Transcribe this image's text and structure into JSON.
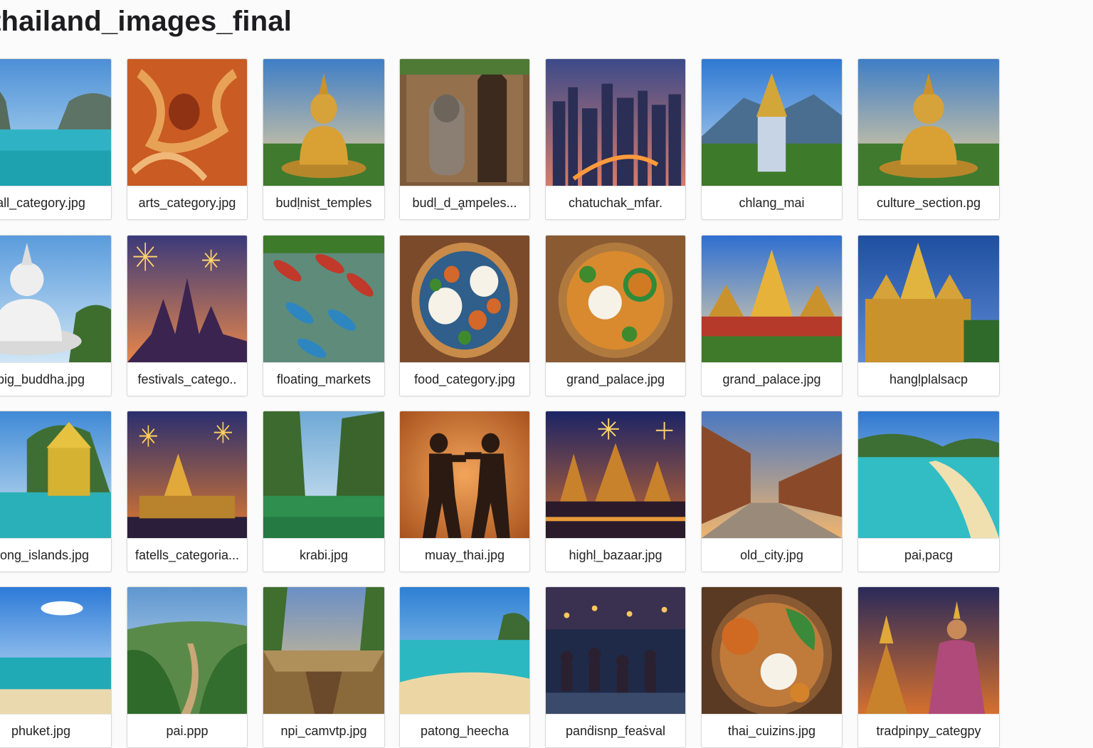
{
  "window": {
    "title": "thailand_images_final"
  },
  "files": [
    {
      "name": "all_category.jpg",
      "icon": "lagoon-cliffs-image-icon"
    },
    {
      "name": "arts_category.jpg",
      "icon": "mural-art-image-icon"
    },
    {
      "name": "budḷnist_temples",
      "icon": "golden-buddha-image-icon"
    },
    {
      "name": "budḷ_d_ḁmpeles...",
      "icon": "stone-ruins-image-icon"
    },
    {
      "name": "chatuchak_mfar.",
      "icon": "city-skyline-image-icon"
    },
    {
      "name": "chlang_mai",
      "icon": "mountain-temple-image-icon"
    },
    {
      "name": "culture_section.pg",
      "icon": "golden-buddha-image-icon"
    },
    {
      "name": "big_buddha.jpg",
      "icon": "white-buddha-image-icon"
    },
    {
      "name": "festivals_catego..",
      "icon": "temple-fireworks-image-icon"
    },
    {
      "name": "floating_markets",
      "icon": "floating-boats-image-icon"
    },
    {
      "name": "food_category.jpg",
      "icon": "food-bowl-image-icon"
    },
    {
      "name": "grand_palace.jpg",
      "icon": "curry-bowl-image-icon"
    },
    {
      "name": "grand_palace.jpg",
      "icon": "grand-palace-image-icon"
    },
    {
      "name": "hangḷplalsacp",
      "icon": "golden-palace-image-icon"
    },
    {
      "name": "hong_islands.jpg",
      "icon": "island-pavilion-image-icon"
    },
    {
      "name": "fatells_categoria...",
      "icon": "pagoda-fireworks-image-icon"
    },
    {
      "name": "krabi.jpg",
      "icon": "river-cliffs-image-icon"
    },
    {
      "name": "muay_thai.jpg",
      "icon": "boxers-silhouette-image-icon"
    },
    {
      "name": "highḷ_bazaar.jpg",
      "icon": "night-temple-image-icon"
    },
    {
      "name": "old_city.jpg",
      "icon": "old-wall-road-image-icon"
    },
    {
      "name": "pai,pacg",
      "icon": "beach-cove-image-icon"
    },
    {
      "name": "phuket.jpg",
      "icon": "beach-sky-image-icon"
    },
    {
      "name": "pai.ppp",
      "icon": "valley-path-image-icon"
    },
    {
      "name": "npi_camvtp.jpg",
      "icon": "canyon-sunset-image-icon"
    },
    {
      "name": "patong_heecha",
      "icon": "sandy-beach-image-icon"
    },
    {
      "name": "panḋisnp_feaṡval",
      "icon": "night-market-image-icon"
    },
    {
      "name": "thai_cuizins.jpg",
      "icon": "thai-platter-image-icon"
    },
    {
      "name": "tradpinpy_categpy",
      "icon": "thai-dancer-image-icon"
    }
  ]
}
